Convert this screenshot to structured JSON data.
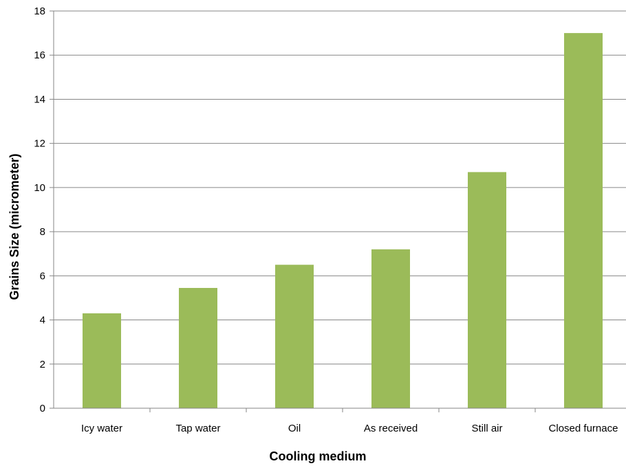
{
  "chart_data": {
    "type": "bar",
    "title": "",
    "xlabel": "Cooling medium",
    "ylabel": "Grains Size (micrometer)",
    "categories": [
      "Icy water",
      "Tap water",
      "Oil",
      "As received",
      "Still air",
      "Closed furnace"
    ],
    "values": [
      4.3,
      5.45,
      6.5,
      7.2,
      10.7,
      17.0
    ],
    "ylim": [
      0,
      18
    ],
    "yticks": [
      0,
      2,
      4,
      6,
      8,
      10,
      12,
      14,
      16,
      18
    ],
    "grid": true,
    "legend": "none",
    "bar_color": "#9bbb59",
    "grid_color": "#868686"
  }
}
